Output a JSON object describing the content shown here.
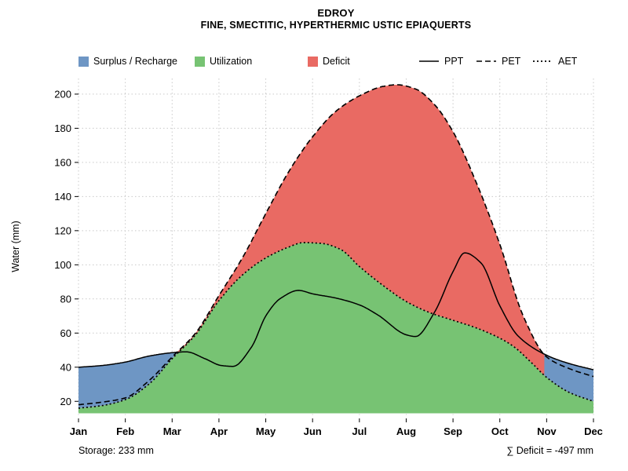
{
  "chart_data": {
    "type": "area",
    "title": "EDROY",
    "subtitle": "FINE, SMECTITIC, HYPERTHERMIC USTIC EPIAQUERTS",
    "ylabel": "Water (mm)",
    "x_tick_labels": [
      "Jan",
      "Feb",
      "Mar",
      "Apr",
      "May",
      "Jun",
      "Jul",
      "Aug",
      "Sep",
      "Oct",
      "Nov",
      "Dec"
    ],
    "y_ticks": [
      20,
      40,
      60,
      80,
      100,
      120,
      140,
      160,
      180,
      200
    ],
    "xlim": [
      0,
      11
    ],
    "ylim": [
      10,
      211
    ],
    "baseline": 13,
    "grid": true,
    "legend": {
      "surplus": "Surplus / Recharge",
      "utilization": "Utilization",
      "deficit": "Deficit",
      "ppt": "PPT",
      "pet": "PET",
      "aet": "AET"
    },
    "colors": {
      "surplus": "#6e96c4",
      "utilization": "#77c373",
      "deficit": "#e96a63",
      "line": "#000000",
      "grid": "#c9c9c9"
    },
    "series": {
      "ppt": {
        "name": "PPT",
        "style": "solid",
        "points": [
          [
            0,
            40
          ],
          [
            0.5,
            41
          ],
          [
            1,
            43
          ],
          [
            1.5,
            46.5
          ],
          [
            2,
            48.5
          ],
          [
            2.3,
            49
          ],
          [
            2.7,
            45
          ],
          [
            3.05,
            41
          ],
          [
            3.3,
            40.5
          ],
          [
            3.7,
            52
          ],
          [
            4,
            70
          ],
          [
            4.3,
            80
          ],
          [
            4.7,
            85
          ],
          [
            5,
            83
          ],
          [
            5.5,
            80.5
          ],
          [
            6,
            76.5
          ],
          [
            6.4,
            70.5
          ],
          [
            7,
            59
          ],
          [
            7.2,
            58
          ],
          [
            7.6,
            72
          ],
          [
            8,
            96
          ],
          [
            8.25,
            107
          ],
          [
            8.6,
            101
          ],
          [
            9,
            76
          ],
          [
            9.4,
            58
          ],
          [
            10,
            47
          ],
          [
            10.5,
            42
          ],
          [
            11,
            38.5
          ]
        ]
      },
      "pet": {
        "name": "PET",
        "style": "dashed",
        "points": [
          [
            0,
            18
          ],
          [
            0.5,
            19.5
          ],
          [
            1,
            22
          ],
          [
            1.5,
            32
          ],
          [
            2,
            46
          ],
          [
            2.5,
            60
          ],
          [
            3,
            82
          ],
          [
            3.5,
            104
          ],
          [
            4,
            130
          ],
          [
            4.5,
            155
          ],
          [
            5,
            175
          ],
          [
            5.5,
            190
          ],
          [
            6,
            199
          ],
          [
            6.5,
            204.5
          ],
          [
            6.8,
            205.5
          ],
          [
            7.2,
            203
          ],
          [
            7.6,
            194
          ],
          [
            8,
            178
          ],
          [
            8.5,
            148
          ],
          [
            9,
            112
          ],
          [
            9.5,
            70
          ],
          [
            10,
            46
          ],
          [
            10.5,
            39
          ],
          [
            11,
            34.5
          ]
        ]
      },
      "aet": {
        "name": "AET",
        "style": "dotted",
        "points": [
          [
            0,
            16
          ],
          [
            0.5,
            17.5
          ],
          [
            1,
            21
          ],
          [
            1.5,
            30
          ],
          [
            2,
            45
          ],
          [
            2.5,
            59
          ],
          [
            3,
            79
          ],
          [
            3.5,
            94
          ],
          [
            4,
            104
          ],
          [
            4.5,
            110.5
          ],
          [
            4.8,
            113
          ],
          [
            5.2,
            112.5
          ],
          [
            5.6,
            109
          ],
          [
            6,
            99
          ],
          [
            6.5,
            88
          ],
          [
            7,
            78.5
          ],
          [
            7.5,
            72
          ],
          [
            8,
            67.5
          ],
          [
            8.5,
            63
          ],
          [
            9,
            57
          ],
          [
            9.3,
            52
          ],
          [
            9.7,
            42
          ],
          [
            10,
            34
          ],
          [
            10.5,
            25
          ],
          [
            11,
            20
          ]
        ]
      }
    },
    "annotations": {
      "storage": "Storage: 233 mm",
      "deficit_sum": "∑ Deficit = -497 mm"
    }
  }
}
